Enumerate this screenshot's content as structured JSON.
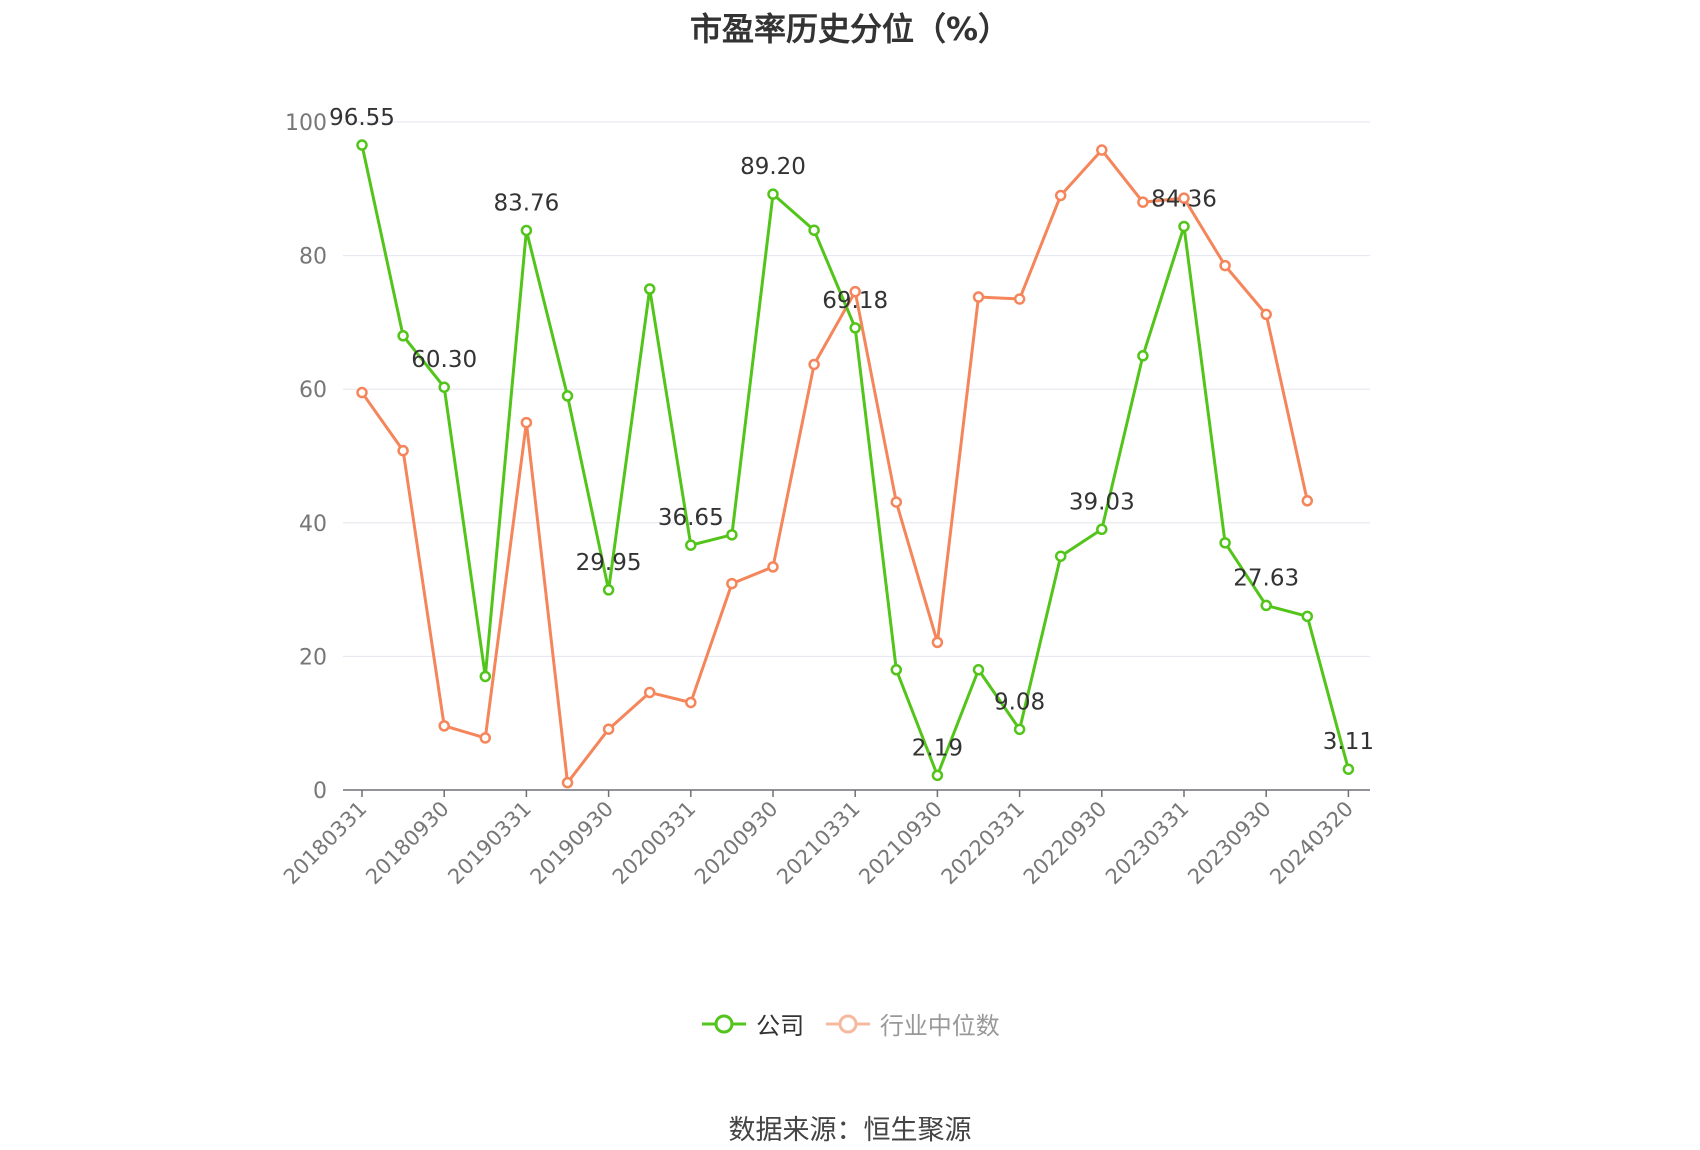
{
  "title": "市盈率历史分位（%）",
  "source": "数据来源：恒生聚源",
  "colors": {
    "company": "#52c41a",
    "industry": "#f5855a",
    "grid": "#e3e6f0",
    "axis": "#6e7079",
    "tick": "#777777",
    "label": "#333333"
  },
  "chart_data": {
    "type": "line",
    "title": "市盈率历史分位（%）",
    "xlabel": "",
    "ylabel": "",
    "ylim": [
      0,
      100
    ],
    "yticks": [
      0,
      20,
      40,
      60,
      80,
      100
    ],
    "grid": true,
    "legend_position": "bottom",
    "x": [
      "20180331",
      "20180630",
      "20180930",
      "20181231",
      "20190331",
      "20190630",
      "20190930",
      "20191231",
      "20200331",
      "20200630",
      "20200930",
      "20201231",
      "20210331",
      "20210630",
      "20210930",
      "20211231",
      "20220331",
      "20220630",
      "20220930",
      "20221231",
      "20230331",
      "20230630",
      "20230930",
      "20231231",
      "20240320"
    ],
    "xtick_labels": [
      "20180331",
      "20180930",
      "20190331",
      "20190930",
      "20200331",
      "20200930",
      "20210331",
      "20210930",
      "20220331",
      "20220930",
      "20230331",
      "20230930",
      "20240320"
    ],
    "series": [
      {
        "name": "公司",
        "values": [
          96.55,
          68.0,
          60.3,
          17.0,
          83.76,
          59.0,
          29.95,
          75.0,
          36.65,
          38.2,
          89.2,
          83.8,
          69.18,
          18.0,
          2.19,
          18.0,
          9.08,
          35.0,
          39.03,
          65.0,
          84.36,
          37.0,
          27.63,
          26.0,
          3.11
        ],
        "data_labels": {
          "0": "96.55",
          "2": "60.30",
          "4": "83.76",
          "6": "29.95",
          "8": "36.65",
          "10": "89.20",
          "12": "69.18",
          "14": "2.19",
          "16": "9.08",
          "18": "39.03",
          "20": "84.36",
          "22": "27.63",
          "24": "3.11"
        }
      },
      {
        "name": "行业中位数",
        "values": [
          59.5,
          50.8,
          9.6,
          7.8,
          55.0,
          1.1,
          9.1,
          14.6,
          13.1,
          30.9,
          33.4,
          63.7,
          74.6,
          43.1,
          22.1,
          73.8,
          73.5,
          89.0,
          95.8,
          88.0,
          88.6,
          78.5,
          71.2,
          43.3,
          null
        ]
      }
    ]
  }
}
